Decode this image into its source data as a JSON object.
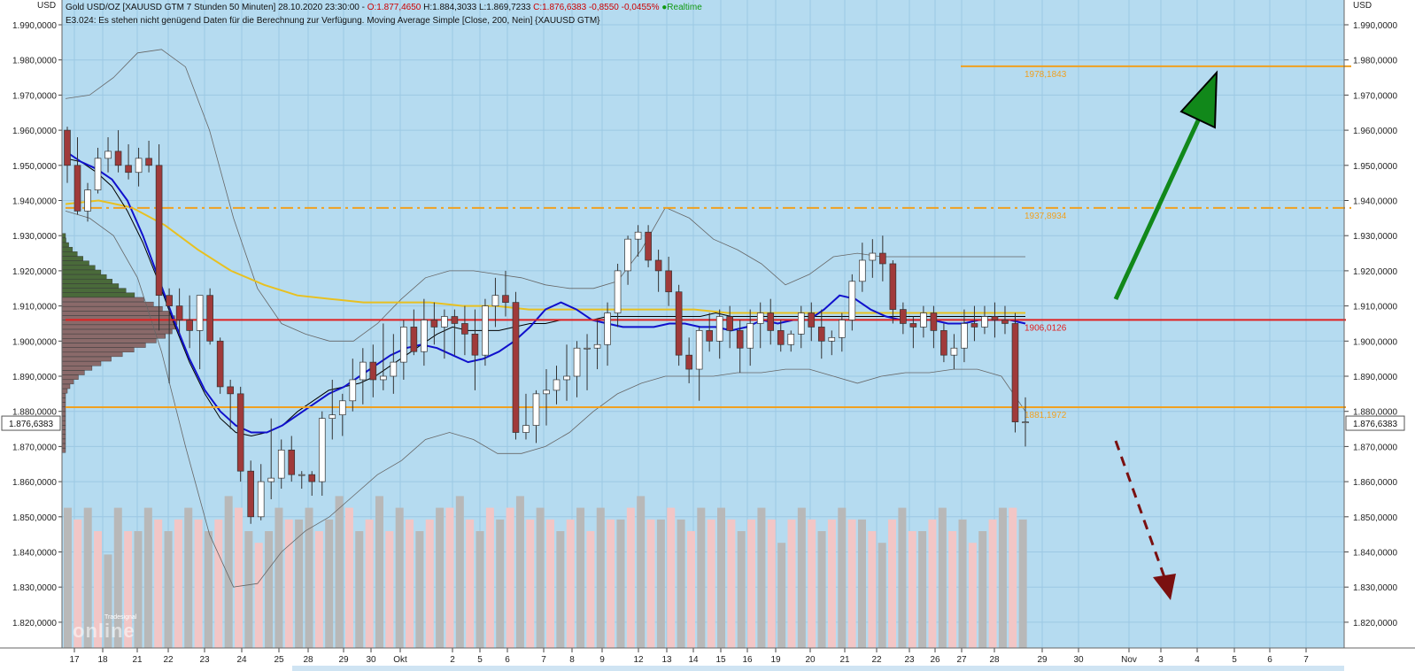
{
  "header": {
    "line1_prefix": "Gold USD/OZ [XAUUSD GTM 7 Stunden 50 Minuten] 28.10.2020 23:30:00 - ",
    "o": "O:1.877,4650",
    "hl": " H:1.884,3033 L:1.869,7233 ",
    "c": "C:1.876,6383 -0,8550 -0,0455%",
    "realtime_bullet": "●",
    "realtime": "Realtime",
    "line2": "E3.024: Es stehen nicht genügend Daten für die Berechnung zur Verfügung. Moving Average Simple [Close, 200, Nein] {XAUUSD GTM}"
  },
  "axis_unit_left": "USD",
  "axis_unit_right": "USD",
  "logo_text_top": "Tradesignal",
  "logo_text_main": "online",
  "colors": {
    "background": "#b5dbf0",
    "up_candle": "#ffffff",
    "down_candle": "#a03a3a",
    "ma_fast": "#1010cc",
    "ma_slow": "#000000",
    "ma_200": "#e8c020",
    "bollinger": "#666666",
    "support_resistance": "#f0a020",
    "pivot_line": "#e02020",
    "arrow_up": "#11881a",
    "arrow_down": "#7a1010",
    "volume_up": "#b8b8b8",
    "volume_down": "#f2c6c6",
    "price_marker": "#ffffff"
  },
  "chart_data": {
    "type": "candlestick",
    "ylim": [
      1812000,
      1998000
    ],
    "y_ticks": [
      1990000,
      1980000,
      1970000,
      1960000,
      1950000,
      1940000,
      1930000,
      1920000,
      1910000,
      1900000,
      1890000,
      1880000,
      1870000,
      1860000,
      1850000,
      1840000,
      1830000,
      1820000
    ],
    "y_tick_labels": [
      "1.990,0000",
      "1.980,0000",
      "1.970,0000",
      "1.960,0000",
      "1.950,0000",
      "1.940,0000",
      "1.930,0000",
      "1.920,0000",
      "1.910,0000",
      "1.900,0000",
      "1.890,0000",
      "1.880,0000",
      "1.870,0000",
      "1.860,0000",
      "1.850,0000",
      "1.840,0000",
      "1.830,0000",
      "1.820,0000"
    ],
    "x_labels": [
      "17",
      "18",
      "21",
      "22",
      "23",
      "24",
      "25",
      "28",
      "29",
      "30",
      "Okt",
      "2",
      "5",
      "6",
      "7",
      "8",
      "9",
      "12",
      "13",
      "14",
      "15",
      "16",
      "19",
      "20",
      "21",
      "22",
      "23",
      "26",
      "27",
      "28",
      "29",
      "30",
      "Nov",
      "3",
      "4",
      "5",
      "6",
      "7"
    ],
    "last_price": 1876638,
    "last_price_label": "1.876,6383",
    "levels": [
      {
        "label": "1978,1843",
        "value": 1978184,
        "style": "solid",
        "color": "#f0a020"
      },
      {
        "label": "1937,8934",
        "value": 1937893,
        "style": "dashdot",
        "color": "#f0a020"
      },
      {
        "label": "1906,0126",
        "value": 1906013,
        "style": "solid",
        "color": "#e02020"
      },
      {
        "label": "1881,1972",
        "value": 1881197,
        "style": "solid",
        "color": "#f0a020"
      }
    ],
    "candles": [
      [
        1960,
        1961,
        1945,
        1950
      ],
      [
        1950,
        1958,
        1936,
        1937
      ],
      [
        1937,
        1945,
        1934,
        1943
      ],
      [
        1943,
        1955,
        1942,
        1952
      ],
      [
        1952,
        1958,
        1948,
        1954
      ],
      [
        1954,
        1960,
        1948,
        1950
      ],
      [
        1950,
        1956,
        1946,
        1948
      ],
      [
        1948,
        1955,
        1944,
        1952
      ],
      [
        1952,
        1957,
        1948,
        1950
      ],
      [
        1950,
        1956,
        1903,
        1913
      ],
      [
        1913,
        1915,
        1888,
        1910
      ],
      [
        1910,
        1915,
        1902,
        1906
      ],
      [
        1906,
        1913,
        1898,
        1903
      ],
      [
        1903,
        1913,
        1892,
        1913
      ],
      [
        1913,
        1915,
        1899,
        1900
      ],
      [
        1900,
        1901,
        1885,
        1887
      ],
      [
        1887,
        1889,
        1875,
        1885
      ],
      [
        1885,
        1887,
        1860,
        1863
      ],
      [
        1863,
        1866,
        1848,
        1850
      ],
      [
        1850,
        1865,
        1849,
        1860
      ],
      [
        1860,
        1878,
        1855,
        1861
      ],
      [
        1861,
        1872,
        1858,
        1869
      ],
      [
        1869,
        1873,
        1860,
        1862
      ],
      [
        1862,
        1863,
        1858,
        1862
      ],
      [
        1862,
        1863,
        1856,
        1860
      ],
      [
        1860,
        1880,
        1856,
        1878
      ],
      [
        1878,
        1889,
        1872,
        1879
      ],
      [
        1879,
        1885,
        1873,
        1883
      ],
      [
        1883,
        1895,
        1880,
        1889
      ],
      [
        1889,
        1898,
        1882,
        1894
      ],
      [
        1894,
        1899,
        1884,
        1889
      ],
      [
        1889,
        1905,
        1886,
        1890
      ],
      [
        1890,
        1902,
        1885,
        1894
      ],
      [
        1894,
        1906,
        1889,
        1904
      ],
      [
        1904,
        1909,
        1896,
        1897
      ],
      [
        1897,
        1912,
        1893,
        1906
      ],
      [
        1906,
        1911,
        1899,
        1904
      ],
      [
        1904,
        1909,
        1895,
        1907
      ],
      [
        1907,
        1909,
        1896,
        1905
      ],
      [
        1905,
        1910,
        1896,
        1902
      ],
      [
        1902,
        1909,
        1886,
        1896
      ],
      [
        1896,
        1912,
        1893,
        1910
      ],
      [
        1910,
        1918,
        1904,
        1913
      ],
      [
        1913,
        1920,
        1907,
        1911
      ],
      [
        1911,
        1914,
        1872,
        1874
      ],
      [
        1874,
        1885,
        1872,
        1876
      ],
      [
        1876,
        1886,
        1871,
        1885
      ],
      [
        1885,
        1892,
        1876,
        1886
      ],
      [
        1886,
        1893,
        1882,
        1889
      ],
      [
        1889,
        1899,
        1883,
        1890
      ],
      [
        1890,
        1900,
        1884,
        1898
      ],
      [
        1898,
        1902,
        1886,
        1898
      ],
      [
        1898,
        1906,
        1892,
        1899
      ],
      [
        1899,
        1911,
        1893,
        1908
      ],
      [
        1908,
        1922,
        1904,
        1920
      ],
      [
        1920,
        1930,
        1916,
        1929
      ],
      [
        1929,
        1933,
        1924,
        1931
      ],
      [
        1931,
        1933,
        1921,
        1923
      ],
      [
        1923,
        1926,
        1914,
        1920
      ],
      [
        1920,
        1924,
        1910,
        1914
      ],
      [
        1914,
        1916,
        1893,
        1896
      ],
      [
        1896,
        1901,
        1888,
        1892
      ],
      [
        1892,
        1904,
        1883,
        1903
      ],
      [
        1903,
        1908,
        1897,
        1900
      ],
      [
        1900,
        1909,
        1895,
        1907
      ],
      [
        1907,
        1910,
        1898,
        1903
      ],
      [
        1903,
        1906,
        1891,
        1898
      ],
      [
        1898,
        1909,
        1893,
        1905
      ],
      [
        1905,
        1911,
        1898,
        1908
      ],
      [
        1908,
        1912,
        1899,
        1903
      ],
      [
        1903,
        1906,
        1897,
        1899
      ],
      [
        1899,
        1903,
        1897,
        1902
      ],
      [
        1902,
        1910,
        1898,
        1908
      ],
      [
        1908,
        1911,
        1900,
        1904
      ],
      [
        1904,
        1909,
        1895,
        1900
      ],
      [
        1900,
        1903,
        1896,
        1901
      ],
      [
        1901,
        1908,
        1897,
        1906
      ],
      [
        1906,
        1919,
        1903,
        1917
      ],
      [
        1917,
        1928,
        1914,
        1923
      ],
      [
        1923,
        1929,
        1918,
        1925
      ],
      [
        1925,
        1930,
        1917,
        1922
      ],
      [
        1922,
        1923,
        1905,
        1909
      ],
      [
        1909,
        1911,
        1902,
        1905
      ],
      [
        1905,
        1907,
        1898,
        1904
      ],
      [
        1904,
        1910,
        1901,
        1908
      ],
      [
        1908,
        1910,
        1898,
        1903
      ],
      [
        1903,
        1905,
        1894,
        1896
      ],
      [
        1896,
        1902,
        1892,
        1898
      ],
      [
        1898,
        1909,
        1894,
        1905
      ],
      [
        1905,
        1910,
        1900,
        1904
      ],
      [
        1904,
        1910,
        1902,
        1907
      ],
      [
        1907,
        1911,
        1901,
        1906
      ],
      [
        1906,
        1910,
        1902,
        1905
      ],
      [
        1905,
        1908,
        1874,
        1877
      ],
      [
        1877,
        1884,
        1870,
        1877
      ]
    ],
    "volume": [
      [
        24,
        "u"
      ],
      [
        22,
        "d"
      ],
      [
        24,
        "u"
      ],
      [
        20,
        "d"
      ],
      [
        16,
        "u"
      ],
      [
        24,
        "u"
      ],
      [
        20,
        "d"
      ],
      [
        20,
        "u"
      ],
      [
        24,
        "u"
      ],
      [
        22,
        "d"
      ],
      [
        20,
        "u"
      ],
      [
        22,
        "d"
      ],
      [
        24,
        "u"
      ],
      [
        22,
        "d"
      ],
      [
        20,
        "u"
      ],
      [
        22,
        "d"
      ],
      [
        26,
        "u"
      ],
      [
        24,
        "d"
      ],
      [
        20,
        "u"
      ],
      [
        18,
        "d"
      ],
      [
        20,
        "u"
      ],
      [
        24,
        "u"
      ],
      [
        22,
        "d"
      ],
      [
        22,
        "u"
      ],
      [
        24,
        "u"
      ],
      [
        20,
        "d"
      ],
      [
        22,
        "u"
      ],
      [
        26,
        "u"
      ],
      [
        24,
        "d"
      ],
      [
        20,
        "u"
      ],
      [
        22,
        "d"
      ],
      [
        26,
        "u"
      ],
      [
        20,
        "d"
      ],
      [
        24,
        "u"
      ],
      [
        22,
        "d"
      ],
      [
        20,
        "u"
      ],
      [
        22,
        "d"
      ],
      [
        24,
        "u"
      ],
      [
        24,
        "d"
      ],
      [
        26,
        "u"
      ],
      [
        22,
        "d"
      ],
      [
        20,
        "u"
      ],
      [
        24,
        "d"
      ],
      [
        22,
        "u"
      ],
      [
        24,
        "d"
      ],
      [
        26,
        "u"
      ],
      [
        22,
        "d"
      ],
      [
        24,
        "u"
      ],
      [
        22,
        "d"
      ],
      [
        20,
        "u"
      ],
      [
        22,
        "d"
      ],
      [
        24,
        "u"
      ],
      [
        20,
        "d"
      ],
      [
        24,
        "u"
      ],
      [
        22,
        "d"
      ],
      [
        22,
        "u"
      ],
      [
        24,
        "d"
      ],
      [
        26,
        "u"
      ],
      [
        22,
        "d"
      ],
      [
        22,
        "u"
      ],
      [
        24,
        "d"
      ],
      [
        22,
        "u"
      ],
      [
        20,
        "d"
      ],
      [
        24,
        "u"
      ],
      [
        22,
        "d"
      ],
      [
        24,
        "u"
      ],
      [
        22,
        "d"
      ],
      [
        20,
        "u"
      ],
      [
        22,
        "d"
      ],
      [
        24,
        "u"
      ],
      [
        22,
        "d"
      ],
      [
        18,
        "u"
      ],
      [
        22,
        "d"
      ],
      [
        24,
        "u"
      ],
      [
        22,
        "d"
      ],
      [
        20,
        "u"
      ],
      [
        22,
        "d"
      ],
      [
        24,
        "u"
      ],
      [
        22,
        "d"
      ],
      [
        22,
        "u"
      ],
      [
        20,
        "d"
      ],
      [
        18,
        "u"
      ],
      [
        22,
        "d"
      ],
      [
        24,
        "u"
      ],
      [
        20,
        "d"
      ],
      [
        20,
        "u"
      ],
      [
        22,
        "d"
      ],
      [
        24,
        "u"
      ],
      [
        20,
        "d"
      ],
      [
        22,
        "u"
      ],
      [
        18,
        "d"
      ],
      [
        20,
        "u"
      ],
      [
        22,
        "d"
      ],
      [
        24,
        "u"
      ],
      [
        24,
        "d"
      ],
      [
        22,
        "u"
      ]
    ],
    "ma_fast_values": [
      1954,
      1951,
      1949,
      1946,
      1940,
      1930,
      1918,
      1906,
      1895,
      1886,
      1880,
      1876,
      1874,
      1874,
      1876,
      1879,
      1882,
      1885,
      1887,
      1890,
      1893,
      1896,
      1898,
      1899,
      1898,
      1896,
      1894,
      1895,
      1897,
      1900,
      1904,
      1909,
      1911,
      1909,
      1906,
      1905,
      1904,
      1904,
      1904,
      1905,
      1905,
      1904,
      1904,
      1903,
      1904,
      1906,
      1905,
      1906,
      1906,
      1909,
      1913,
      1912,
      1909,
      1907,
      1906,
      1906,
      1906,
      1905,
      1905,
      1906,
      1906,
      1906,
      1905
    ],
    "ma_slow_values": [
      1952,
      1951,
      1948,
      1944,
      1937,
      1928,
      1917,
      1905,
      1894,
      1885,
      1878,
      1874,
      1873,
      1874,
      1876,
      1880,
      1883,
      1886,
      1887,
      1888,
      1890,
      1893,
      1896,
      1899,
      1902,
      1904,
      1903,
      1903,
      1903,
      1904,
      1905,
      1905,
      1906,
      1906,
      1906,
      1907,
      1907,
      1907,
      1907,
      1907,
      1907,
      1907,
      1908,
      1907,
      1907,
      1907,
      1907,
      1907,
      1907,
      1907,
      1907,
      1907,
      1907,
      1907,
      1907,
      1907,
      1907,
      1907,
      1907,
      1907,
      1907,
      1907,
      1907
    ],
    "ma_200_values": [
      1939,
      1940,
      1938,
      1933,
      1926,
      1920,
      1916,
      1913,
      1912,
      1911,
      1911,
      1911,
      1910,
      1910,
      1909,
      1909,
      1909,
      1909,
      1909,
      1909,
      1908,
      1908,
      1908,
      1908,
      1908,
      1908,
      1908,
      1908,
      1908,
      1908
    ],
    "bollinger_upper": [
      1969,
      1970,
      1975,
      1982,
      1983,
      1978,
      1960,
      1935,
      1915,
      1905,
      1902,
      1900,
      1900,
      1905,
      1912,
      1918,
      1920,
      1920,
      1919,
      1918,
      1916,
      1915,
      1915,
      1917,
      1926,
      1938,
      1935,
      1929,
      1926,
      1922,
      1916,
      1919,
      1924,
      1925,
      1924,
      1924,
      1924,
      1924,
      1924,
      1924,
      1924
    ],
    "bollinger_lower": [
      1937,
      1935,
      1930,
      1918,
      1897,
      1870,
      1845,
      1830,
      1831,
      1840,
      1846,
      1850,
      1856,
      1862,
      1866,
      1872,
      1874,
      1872,
      1868,
      1868,
      1870,
      1874,
      1880,
      1885,
      1888,
      1890,
      1890,
      1890,
      1891,
      1891,
      1892,
      1892,
      1890,
      1888,
      1890,
      1891,
      1891,
      1892,
      1892,
      1890,
      1880
    ]
  }
}
